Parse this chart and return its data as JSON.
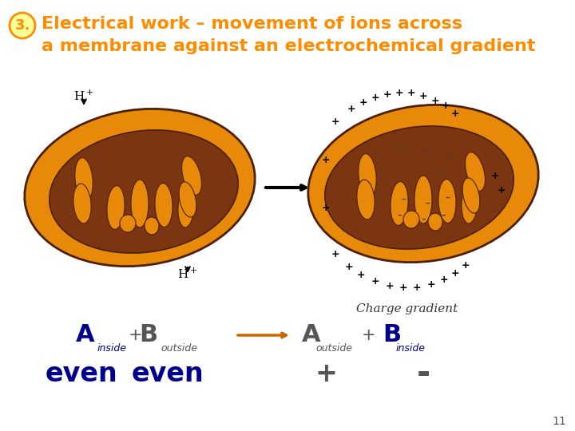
{
  "bg_color": "#ffffff",
  "title_number": "3.",
  "title_number_color": "#ff8c00",
  "title_number_bg": "#ffff99",
  "title_number_border": "#ff8c00",
  "title_line1": "Electrical work – movement of ions across",
  "title_line2": "a membrane against an electrochemical gradient",
  "title_color": "#ff8c00",
  "title_fontsize": 16,
  "title_font": "Comic Sans MS",
  "arrow_color": "#cc6600",
  "mito_outer_color": "#E8890A",
  "mito_inner_color": "#7B3510",
  "mito_edge_color": "#4a2000",
  "bottom_section": {
    "A_inside_color": "#00008b",
    "B_outside_color": "#555555",
    "A_outside_color": "#555555",
    "B_inside_color": "#00008b",
    "even_color": "#00008b",
    "plus_minus_color": "#555555",
    "operator_color": "#555555"
  },
  "page_number": "11",
  "page_number_color": "#555555"
}
